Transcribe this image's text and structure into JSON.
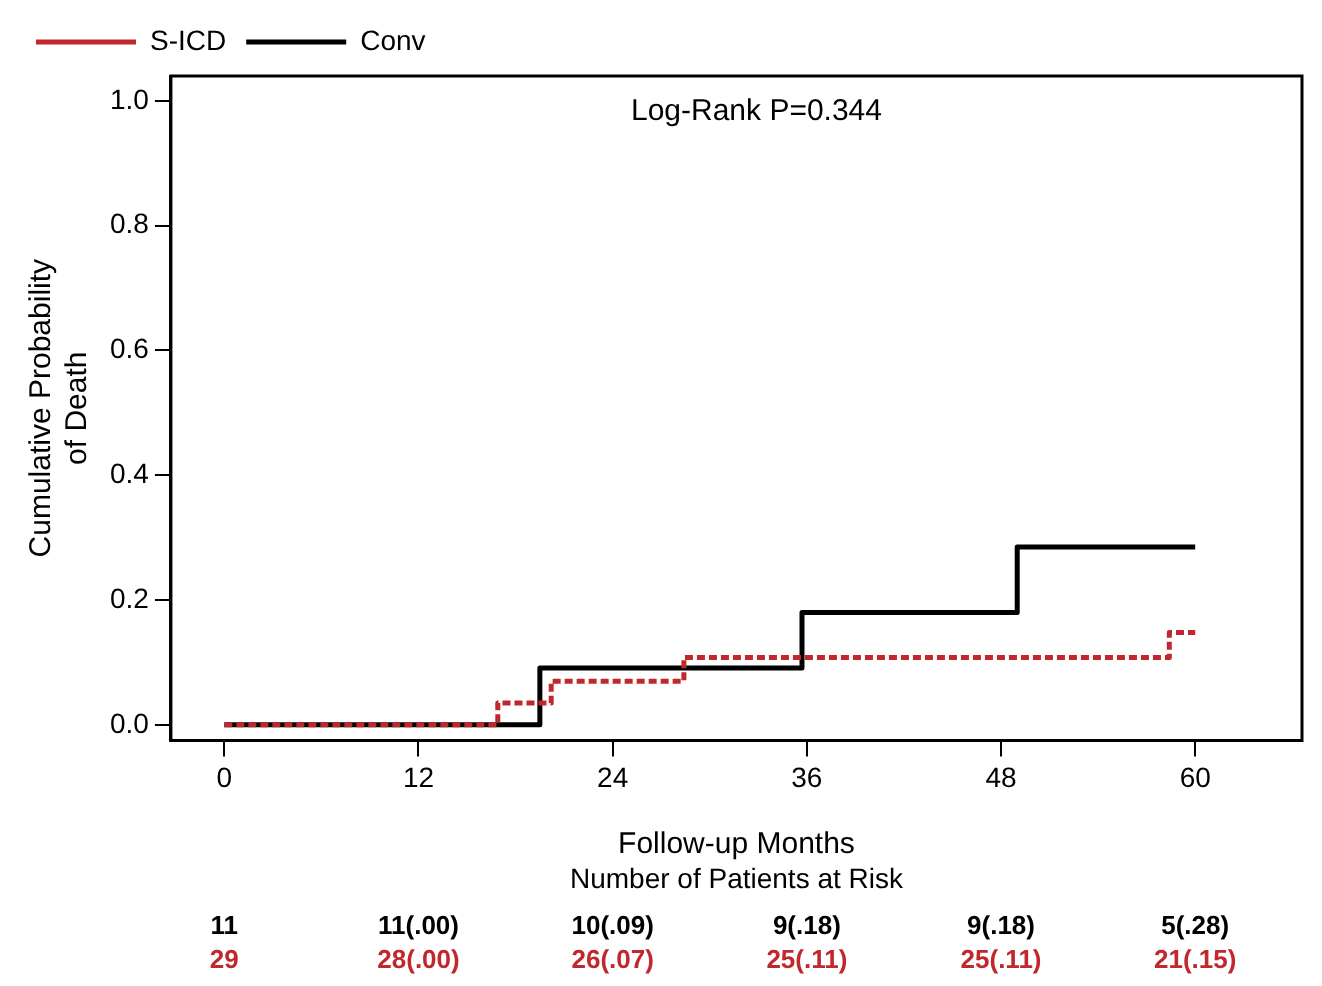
{
  "chart_data": {
    "type": "step",
    "xlabel": "Follow-up Months",
    "ylabel": "Cumulative Probability\nof Death",
    "xlim": [
      -3.3,
      66.6
    ],
    "xticks": [
      0,
      12,
      24,
      36,
      48,
      60
    ],
    "ylim": [
      -0.025,
      1.04
    ],
    "yticks": [
      {
        "value": 0,
        "label": "0.0"
      },
      {
        "value": 0.2,
        "label": "0.2"
      },
      {
        "value": 0.4,
        "label": "0.4"
      },
      {
        "value": 0.6,
        "label": "0.6"
      },
      {
        "value": 0.8,
        "label": "0.8"
      },
      {
        "value": 1,
        "label": "1.0"
      }
    ],
    "grid": false,
    "legend": "top left",
    "marker": "none",
    "series": [
      {
        "name": "Conv",
        "color": "#000000",
        "line_style": "solid",
        "x": [
          0,
          19.5,
          35.7,
          49.0,
          60
        ],
        "values": [
          0,
          0.091,
          0.18,
          0.285,
          0.285
        ]
      },
      {
        "name": "S-ICD",
        "color": "#c0282d",
        "line_style": "dashed",
        "x": [
          0,
          16.9,
          20.2,
          28.4,
          58.4,
          60
        ],
        "values": [
          0,
          0.035,
          0.07,
          0.108,
          0.148,
          0.148
        ]
      }
    ],
    "annotations": [
      "Log-Rank P=0.344",
      "Number of Patients at Risk",
      "11",
      "11(.00)",
      "10(.09)",
      "9(.18)",
      "9(.18)",
      "5(.28)",
      "29",
      "28(.00)",
      "26(.07)",
      "25(.11)",
      "25(.11)",
      "21(.15)"
    ]
  }
}
